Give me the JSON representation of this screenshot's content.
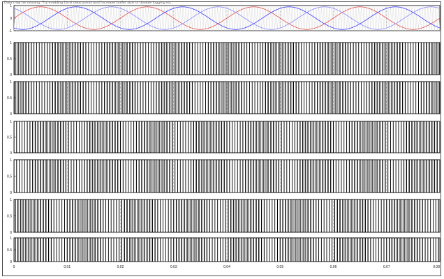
{
  "status_text": "Data may be missing. Try enabling Limit data points and Increase buffer size or disable logging etc.",
  "chart_data": [
    {
      "type": "line",
      "name": "carrier-and-reference",
      "xlim": [
        0,
        0.08
      ],
      "ylim": [
        -1,
        1
      ],
      "yticks": [
        "1",
        "0",
        "-1"
      ],
      "carrier_frequency_hz": 2000,
      "reference_frequency_hz": 50,
      "series": [
        {
          "kind": "triangle",
          "frequency_hz": 2000,
          "amplitude": 1,
          "color": "#d9d9d9"
        },
        {
          "kind": "sine",
          "frequency_hz": 50,
          "amplitude": 0.9,
          "phase_deg": 0,
          "color": "#e05050"
        },
        {
          "kind": "sine",
          "frequency_hz": 50,
          "amplitude": 0.9,
          "phase_deg": -120,
          "color": "#3a3aff"
        },
        {
          "kind": "sine",
          "frequency_hz": 50,
          "amplitude": 0.9,
          "phase_deg": 120,
          "color": "#8888ff"
        }
      ]
    },
    {
      "type": "line",
      "name": "gate-pulse-1",
      "xlim": [
        0,
        0.08
      ],
      "ylim": [
        0,
        1
      ],
      "yticks": [
        "1",
        "0.5",
        "0"
      ],
      "pwm_ref_phase_deg": 0,
      "invert": false,
      "color": "#000000"
    },
    {
      "type": "line",
      "name": "gate-pulse-2",
      "xlim": [
        0,
        0.08
      ],
      "ylim": [
        0,
        1
      ],
      "yticks": [
        "1",
        "0.5",
        "0"
      ],
      "pwm_ref_phase_deg": 0,
      "invert": true,
      "color": "#000000"
    },
    {
      "type": "line",
      "name": "gate-pulse-3",
      "xlim": [
        0,
        0.08
      ],
      "ylim": [
        0,
        1
      ],
      "yticks": [
        "1",
        "0.5",
        "0"
      ],
      "pwm_ref_phase_deg": -120,
      "invert": false,
      "color": "#000000"
    },
    {
      "type": "line",
      "name": "gate-pulse-4",
      "xlim": [
        0,
        0.08
      ],
      "ylim": [
        0,
        1
      ],
      "yticks": [
        "1",
        "0.5",
        "0"
      ],
      "pwm_ref_phase_deg": -120,
      "invert": true,
      "color": "#000000"
    },
    {
      "type": "line",
      "name": "gate-pulse-5",
      "xlim": [
        0,
        0.08
      ],
      "ylim": [
        0,
        1
      ],
      "yticks": [
        "1",
        "0.5",
        "0"
      ],
      "pwm_ref_phase_deg": 120,
      "invert": false,
      "color": "#000000"
    },
    {
      "type": "line",
      "name": "gate-pulse-6",
      "xlim": [
        0,
        0.08
      ],
      "ylim": [
        0,
        1
      ],
      "yticks": [
        "1",
        "0.5",
        "0"
      ],
      "pwm_ref_phase_deg": 120,
      "invert": true,
      "color": "#000000"
    }
  ],
  "x_axis": {
    "ticks": [
      0,
      0.01,
      0.02,
      0.03,
      0.04,
      0.05,
      0.06,
      0.07,
      0.08
    ],
    "tick_labels": [
      "0",
      "0.01",
      "0.02",
      "0.03",
      "0.04",
      "0.05",
      "0.06",
      "0.07",
      "0.08"
    ]
  },
  "colors": {
    "frame": "#4a4a4a",
    "axes_border": "#000000",
    "grid": "#7f7f7f",
    "background": "#ffffff"
  }
}
